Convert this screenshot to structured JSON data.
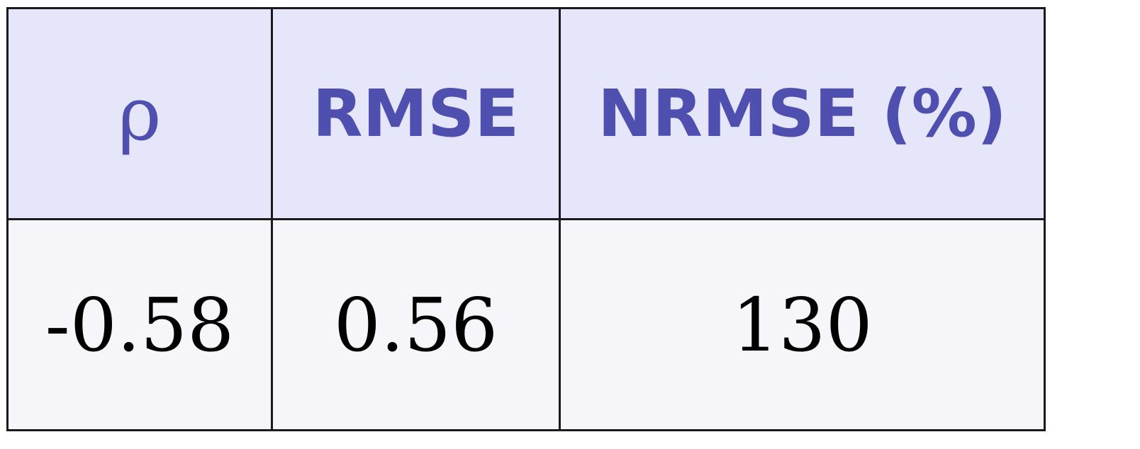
{
  "table": {
    "headers": {
      "rho": "ρ",
      "rmse": "RMSE",
      "nrmse": "NRMSE (%)"
    },
    "values": {
      "rho": "-0.58",
      "rmse": "0.56",
      "nrmse": "130"
    }
  },
  "colors": {
    "header_background": "#e6e6fa",
    "header_text": "#4f4fb0",
    "body_background": "#f6f6fa",
    "body_text": "#000000",
    "border": "#1a1a1a"
  }
}
